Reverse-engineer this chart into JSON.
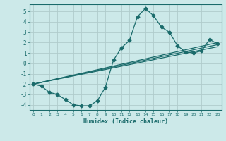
{
  "xlabel": "Humidex (Indice chaleur)",
  "background_color": "#cce9e9",
  "grid_color": "#b0cccc",
  "line_color": "#1a6b6b",
  "xlim": [
    -0.5,
    23.5
  ],
  "ylim": [
    -4.5,
    5.7
  ],
  "xticks": [
    0,
    1,
    2,
    3,
    4,
    5,
    6,
    7,
    8,
    9,
    10,
    11,
    12,
    13,
    14,
    15,
    16,
    17,
    18,
    19,
    20,
    21,
    22,
    23
  ],
  "yticks": [
    -4,
    -3,
    -2,
    -1,
    0,
    1,
    2,
    3,
    4,
    5
  ],
  "curve1_x": [
    0,
    1,
    2,
    3,
    4,
    5,
    6,
    7,
    8,
    9,
    10,
    11,
    12,
    13,
    14,
    15,
    16,
    17,
    18,
    19,
    20,
    21,
    22,
    23
  ],
  "curve1_y": [
    -2.0,
    -2.2,
    -2.8,
    -3.0,
    -3.5,
    -4.0,
    -4.1,
    -4.1,
    -3.6,
    -2.3,
    0.3,
    1.5,
    2.2,
    4.5,
    5.3,
    4.6,
    3.5,
    3.0,
    1.7,
    1.1,
    1.0,
    1.2,
    2.3,
    1.9
  ],
  "curve2_x": [
    0,
    23
  ],
  "curve2_y": [
    -2.0,
    2.0
  ],
  "curve3_x": [
    0,
    23
  ],
  "curve3_y": [
    -2.0,
    1.8
  ],
  "curve4_x": [
    0,
    23
  ],
  "curve4_y": [
    -2.0,
    1.6
  ]
}
